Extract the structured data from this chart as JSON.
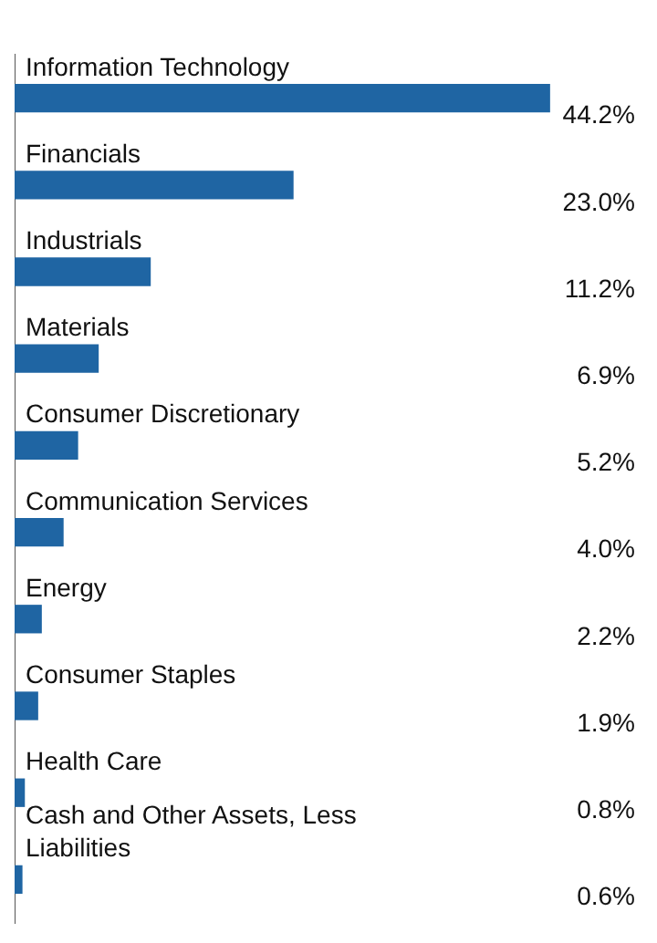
{
  "chart_data": {
    "type": "bar",
    "orientation": "horizontal",
    "categories": [
      "Information Technology",
      "Financials",
      "Industrials",
      "Materials",
      "Consumer Discretionary",
      "Communication Services",
      "Energy",
      "Consumer Staples",
      "Health Care",
      "Cash and Other Assets, Less Liabilities"
    ],
    "values": [
      44.2,
      23.0,
      11.2,
      6.9,
      5.2,
      4.0,
      2.2,
      1.9,
      0.8,
      0.6
    ],
    "value_labels": [
      "44.2%",
      "23.0%",
      "11.2%",
      "6.9%",
      "5.2%",
      "4.0%",
      "2.2%",
      "1.9%",
      "0.8%",
      "0.6%"
    ],
    "color": "#1f65a3",
    "legend": false,
    "grid": false
  }
}
